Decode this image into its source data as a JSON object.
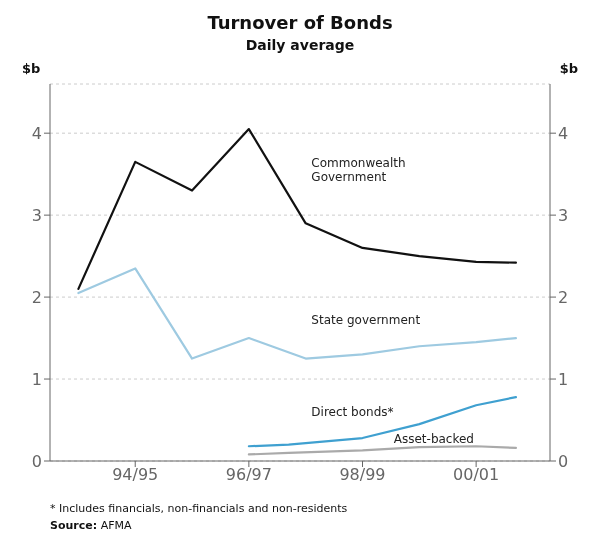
{
  "chart_data": {
    "type": "line",
    "title": "Turnover of Bonds",
    "subtitle": "Daily average",
    "y_label": "$b",
    "y2_label": "$b",
    "footnote": "*    Includes financials, non-financials and non-residents",
    "source_label": "Source:",
    "source": "AFMA",
    "xlim": [
      1993.0,
      2001.8
    ],
    "xticks": [
      {
        "value": 1994.5,
        "label": "94/95"
      },
      {
        "value": 1996.5,
        "label": "96/97"
      },
      {
        "value": 1998.5,
        "label": "98/99"
      },
      {
        "value": 2000.5,
        "label": "00/01"
      }
    ],
    "ylim": [
      0,
      4.6
    ],
    "yticks": [
      0,
      1,
      2,
      3,
      4
    ],
    "y2lim": [
      0,
      4.6
    ],
    "y2ticks": [
      0,
      1,
      2,
      3,
      4
    ],
    "grid": true,
    "series": [
      {
        "color": "#111111",
        "x": [
          1993.5,
          1994.5,
          1995.5,
          1996.5,
          1997.5,
          1998.5,
          1999.5,
          2000.5,
          2001.2
        ],
        "values": [
          2.1,
          3.65,
          3.3,
          4.05,
          2.9,
          2.6,
          2.5,
          2.43,
          2.42
        ]
      },
      {
        "color": "#9ecae1",
        "x": [
          1993.5,
          1994.5,
          1995.5,
          1996.5,
          1997.5,
          1998.5,
          1999.5,
          2000.5,
          2001.2
        ],
        "values": [
          2.05,
          2.35,
          1.25,
          1.5,
          1.25,
          1.3,
          1.4,
          1.45,
          1.5
        ]
      },
      {
        "color": "#3fa0d0",
        "x": [
          1996.5,
          1997.2,
          1998.5,
          1999.5,
          2000.5,
          2001.2
        ],
        "values": [
          0.18,
          0.2,
          0.28,
          0.45,
          0.68,
          0.78
        ]
      },
      {
        "color": "#aaaaaa",
        "x": [
          1996.5,
          1997.2,
          1998.5,
          1999.5,
          2000.5,
          2001.2
        ],
        "values": [
          0.08,
          0.1,
          0.13,
          0.17,
          0.18,
          0.16
        ]
      }
    ],
    "annotations": [
      {
        "text": "Commonwealth\nGovernment",
        "x": 1997.6,
        "y": 3.55
      },
      {
        "text": "State government",
        "x": 1997.6,
        "y": 1.72
      },
      {
        "text": "Direct bonds*",
        "x": 1997.6,
        "y": 0.6
      },
      {
        "text": "Asset-backed",
        "x": 1999.05,
        "y": 0.27
      }
    ]
  }
}
